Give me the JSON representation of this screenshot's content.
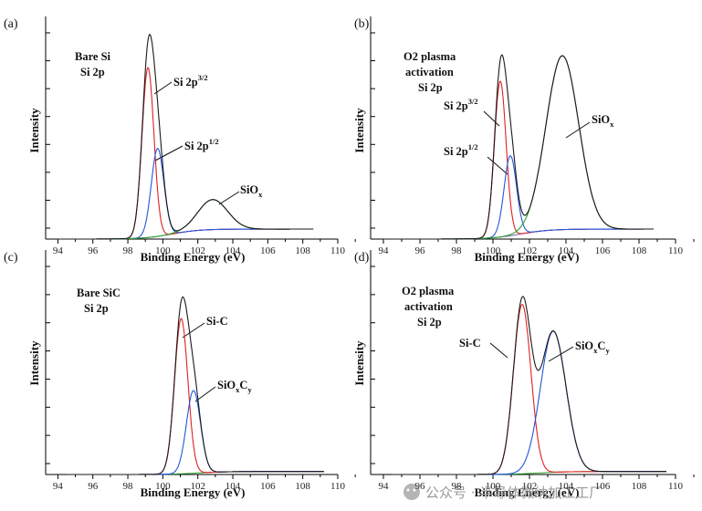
{
  "colors": {
    "envelope": "#1a1a1a",
    "component_3_2": "#e02020",
    "component_1_2": "#2255dd",
    "oxide": "#2aa02a",
    "background": "#7a5ab0",
    "sic_background": "#2aa02a"
  },
  "shared_axes": {
    "xlabel": "Binding Energy (eV)",
    "ylabel": "Intensity"
  },
  "watermark": "公众号 · 半导体微纳加工工厂",
  "chart_data": [
    {
      "panel": "(a)",
      "type": "line",
      "title_lines": [
        "Bare Si",
        "Si 2p"
      ],
      "xlabel": "Binding Energy (eV)",
      "ylabel": "Intensity",
      "xlim": [
        93.3,
        110
      ],
      "x_ticks": [
        94,
        96,
        98,
        100,
        102,
        104,
        106,
        108,
        110
      ],
      "ylim": [
        0,
        1.05
      ],
      "x_range": [
        94,
        108.6
      ],
      "background": {
        "start": 0.0,
        "end": 0.05,
        "center": 100.5
      },
      "series": [
        {
          "name": "Si 2p3/2",
          "color_key": "component_3_2",
          "peaks": [
            {
              "center": 99.15,
              "height": 0.85,
              "sigma": 0.34
            }
          ]
        },
        {
          "name": "Si 2p1/2",
          "color_key": "component_1_2",
          "peaks": [
            {
              "center": 99.7,
              "height": 0.44,
              "sigma": 0.36
            }
          ]
        },
        {
          "name": "SiOx",
          "color_key": "oxide",
          "peaks": [
            {
              "center": 102.85,
              "height": 0.15,
              "sigma": 0.85
            }
          ]
        },
        {
          "name": "Envelope",
          "color_key": "envelope",
          "kind": "sum"
        }
      ],
      "annotations": [
        {
          "label": "Si 2p",
          "sup": "3/2",
          "target": "Si 2p3/2"
        },
        {
          "label": "Si 2p",
          "sup": "1/2",
          "target": "Si 2p1/2"
        },
        {
          "label": "SiO",
          "sub": "x",
          "target": "SiOx"
        }
      ]
    },
    {
      "panel": "(b)",
      "type": "line",
      "title_lines": [
        "O2 plasma",
        "activation",
        "Si 2p"
      ],
      "xlabel": "Binding Energy (eV)",
      "ylabel": "Intensity",
      "xlim": [
        93.3,
        110
      ],
      "x_ticks": [
        94,
        96,
        98,
        100,
        102,
        104,
        106,
        108,
        110
      ],
      "ylim": [
        0,
        1.05
      ],
      "x_range": [
        94,
        108.8
      ],
      "background": {
        "start": 0.0,
        "end": 0.05,
        "center": 101.5
      },
      "series": [
        {
          "name": "Si 2p3/2",
          "color_key": "component_3_2",
          "peaks": [
            {
              "center": 100.4,
              "height": 0.78,
              "sigma": 0.32
            }
          ]
        },
        {
          "name": "Si 2p1/2",
          "color_key": "component_1_2",
          "peaks": [
            {
              "center": 100.95,
              "height": 0.4,
              "sigma": 0.34
            }
          ]
        },
        {
          "name": "SiOx",
          "color_key": "oxide",
          "peaks": [
            {
              "center": 103.8,
              "height": 0.87,
              "sigma": 0.9
            }
          ]
        },
        {
          "name": "Envelope",
          "color_key": "envelope",
          "kind": "sum"
        }
      ],
      "annotations": [
        {
          "label": "Si 2p",
          "sup": "3/2",
          "target": "Si 2p3/2"
        },
        {
          "label": "Si 2p",
          "sup": "1/2",
          "target": "Si 2p1/2"
        },
        {
          "label": "SiO",
          "sub": "x",
          "target": "SiOx"
        }
      ]
    },
    {
      "panel": "(c)",
      "type": "line",
      "title_lines": [
        "Bare SiC",
        "Si 2p"
      ],
      "xlabel": "Binding Energy (eV)",
      "ylabel": "Intensity",
      "xlim": [
        93.3,
        110
      ],
      "x_ticks": [
        94,
        96,
        98,
        100,
        102,
        104,
        106,
        108,
        110
      ],
      "ylim": [
        0,
        1.05
      ],
      "x_range": [
        94.5,
        109.2
      ],
      "background": {
        "start": 0.0,
        "end": 0.015,
        "center": 102
      },
      "series": [
        {
          "name": "Si-C",
          "color_key": "component_3_2",
          "peaks": [
            {
              "center": 101.05,
              "height": 0.77,
              "sigma": 0.38
            }
          ]
        },
        {
          "name": "SiOxCy",
          "color_key": "component_1_2",
          "peaks": [
            {
              "center": 101.75,
              "height": 0.41,
              "sigma": 0.4
            }
          ]
        },
        {
          "name": "Background",
          "color_key": "sic_background",
          "kind": "background"
        },
        {
          "name": "Envelope",
          "color_key": "envelope",
          "kind": "sum"
        }
      ],
      "annotations": [
        {
          "label": "Si-C",
          "target": "Si-C"
        },
        {
          "label": "SiO",
          "sub": "x",
          "label2": "C",
          "sub2": "y",
          "target": "SiOxCy"
        }
      ]
    },
    {
      "panel": "(d)",
      "type": "line",
      "title_lines": [
        "O2 plasma",
        "activation",
        "Si 2p"
      ],
      "xlabel": "Binding Energy (eV)",
      "ylabel": "Intensity",
      "xlim": [
        93.3,
        110
      ],
      "x_ticks": [
        94,
        96,
        98,
        100,
        102,
        104,
        106,
        108,
        110
      ],
      "ylim": [
        0,
        1.05
      ],
      "x_range": [
        94.5,
        109.5
      ],
      "background": {
        "start": 0.0,
        "end": 0.015,
        "center": 102.5
      },
      "series": [
        {
          "name": "Si-C",
          "color_key": "component_3_2",
          "peaks": [
            {
              "center": 101.6,
              "height": 0.84,
              "sigma": 0.48
            }
          ]
        },
        {
          "name": "SiOxCy",
          "color_key": "component_1_2",
          "peaks": [
            {
              "center": 103.3,
              "height": 0.7,
              "sigma": 0.7
            }
          ]
        },
        {
          "name": "Background",
          "color_key": "sic_background",
          "kind": "background"
        },
        {
          "name": "Envelope",
          "color_key": "envelope",
          "kind": "sum"
        }
      ],
      "annotations": [
        {
          "label": "Si-C",
          "target": "Si-C"
        },
        {
          "label": "SiO",
          "sub": "x",
          "label2": "C",
          "sub2": "y",
          "target": "SiOxCy"
        }
      ]
    }
  ]
}
